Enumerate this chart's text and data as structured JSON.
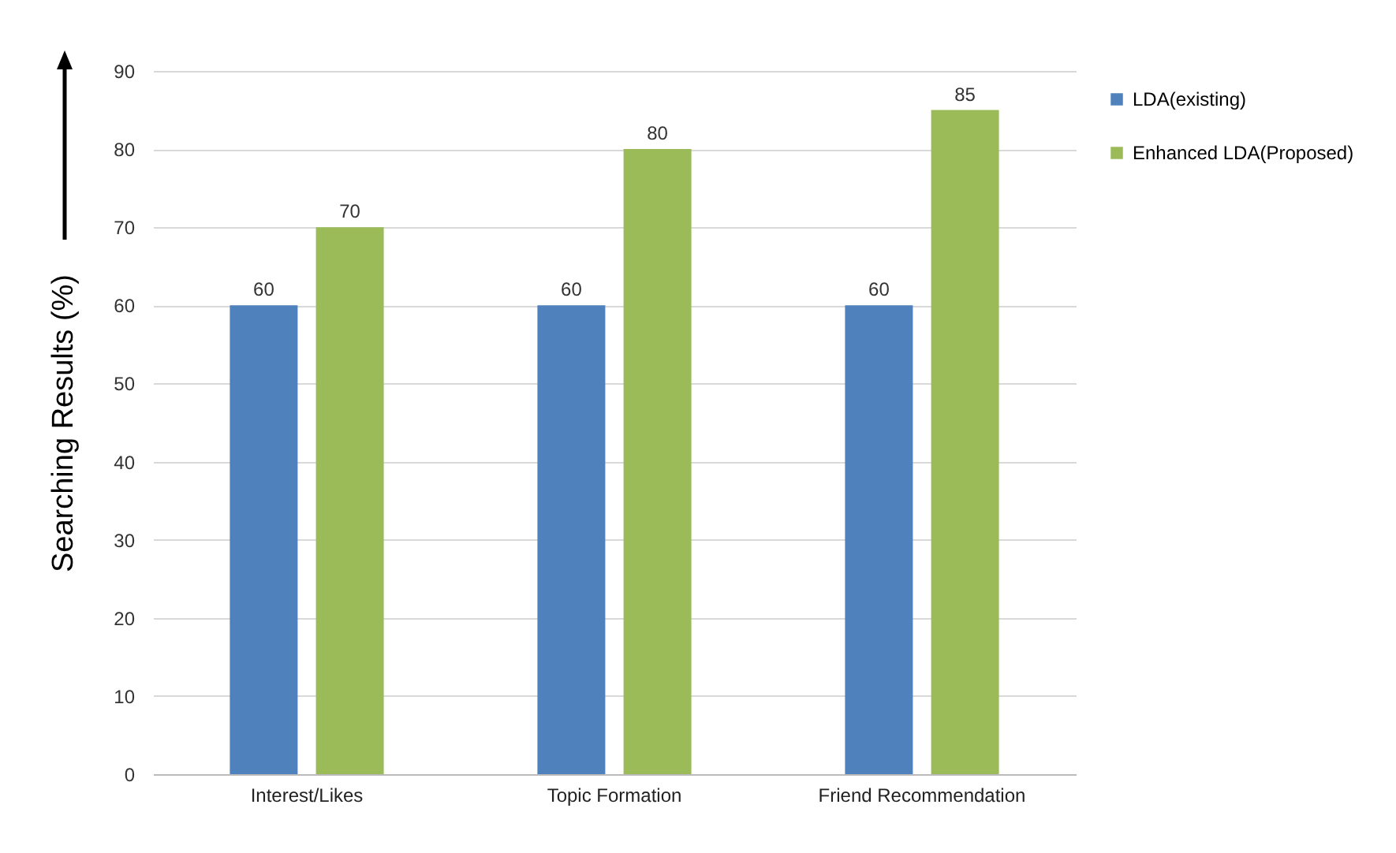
{
  "chart_data": {
    "type": "bar",
    "ylabel": "Searching Results (%)",
    "categories": [
      "Interest/Likes",
      "Topic Formation",
      "Friend Recommendation"
    ],
    "series": [
      {
        "name": "LDA(existing)",
        "color": "#4f81bd",
        "values": [
          60,
          60,
          60
        ]
      },
      {
        "name": "Enhanced LDA(Proposed)",
        "color": "#9bbb59",
        "values": [
          70,
          80,
          85
        ]
      }
    ],
    "ylim": [
      0,
      90
    ],
    "yticks": [
      0,
      10,
      20,
      30,
      40,
      50,
      60,
      70,
      80,
      90
    ],
    "grid": "y",
    "legend": "top right",
    "data_labels": true
  }
}
